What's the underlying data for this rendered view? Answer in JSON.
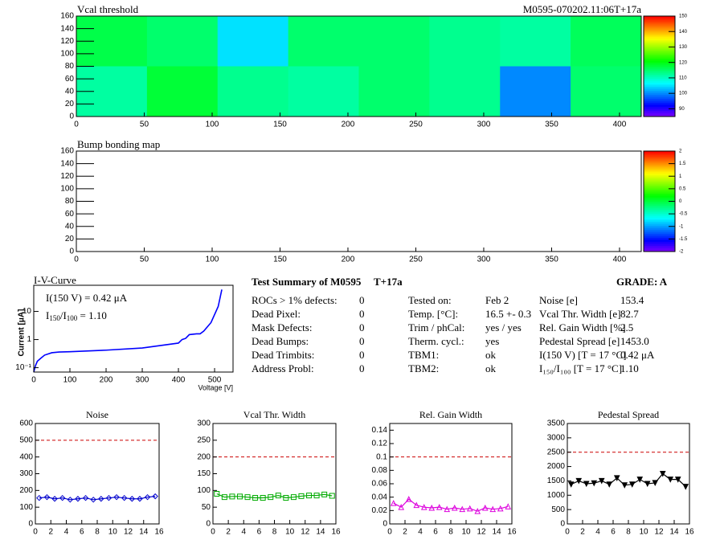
{
  "chart_data": [
    {
      "type": "heatmap",
      "title": "Vcal threshold",
      "subtitle": "M0595-070202.11:06T+17a",
      "values": [
        [
          117,
          115,
          105,
          115,
          115,
          113,
          112,
          116
        ],
        [
          112,
          118,
          113,
          112,
          115,
          113,
          100,
          115
        ]
      ],
      "xlim": [
        0,
        416
      ],
      "xticks": [
        0,
        50,
        100,
        150,
        200,
        250,
        300,
        350,
        400
      ],
      "ylim": [
        0,
        160
      ],
      "yticks": [
        0,
        20,
        40,
        60,
        80,
        100,
        120,
        140,
        160
      ],
      "zlim": [
        85,
        150
      ],
      "zticks": [
        90,
        100,
        110,
        120,
        130,
        140,
        150
      ]
    },
    {
      "type": "heatmap",
      "title": "Bump bonding map",
      "values": [],
      "xlim": [
        0,
        416
      ],
      "xticks": [
        0,
        50,
        100,
        150,
        200,
        250,
        300,
        350,
        400
      ],
      "ylim": [
        0,
        160
      ],
      "yticks": [
        0,
        20,
        40,
        60,
        80,
        100,
        120,
        140,
        160
      ],
      "zlim": [
        -2,
        2
      ],
      "zticks": [
        -2,
        -1.5,
        -1,
        -0.5,
        0,
        0.5,
        1,
        1.5,
        2
      ]
    },
    {
      "type": "line",
      "title": "I-V-Curve",
      "x_label": "Voltage [V]",
      "y_label": "Current [μA]",
      "annotation": "I(150 V) = 0.42 μA",
      "ratio_parts": [
        "I",
        "150",
        "/I",
        "100",
        " =  1.10"
      ],
      "x": [
        0,
        5,
        10,
        20,
        30,
        50,
        70,
        100,
        200,
        300,
        400,
        410,
        420,
        430,
        450,
        460,
        470,
        490,
        510,
        520
      ],
      "values": [
        0.07,
        0.12,
        0.17,
        0.22,
        0.28,
        0.34,
        0.36,
        0.37,
        0.42,
        0.5,
        0.75,
        1.0,
        1.1,
        1.5,
        1.6,
        1.6,
        2.0,
        4,
        15,
        60
      ],
      "color": "#0000ff",
      "log_y": true,
      "xlim": [
        0,
        551
      ],
      "xticks": [
        0,
        100,
        200,
        300,
        400,
        500
      ],
      "ylim": [
        0.07,
        85
      ],
      "yticks": [
        {
          "value": 0.1,
          "label": "10⁻¹"
        },
        1,
        10
      ]
    },
    {
      "type": "line",
      "title": "Noise",
      "color": "#0000cc",
      "marker": "diamond",
      "threshold": 500,
      "x": [
        0.5,
        1.5,
        2.5,
        3.5,
        4.5,
        5.5,
        6.5,
        7.5,
        8.5,
        9.5,
        10.5,
        11.5,
        12.5,
        13.5,
        14.5,
        15.5
      ],
      "values": [
        155,
        160,
        150,
        155,
        145,
        150,
        155,
        145,
        150,
        155,
        160,
        155,
        150,
        150,
        160,
        165
      ],
      "xlim": [
        0,
        16
      ],
      "xticks": [
        0,
        2,
        4,
        6,
        8,
        10,
        12,
        14,
        16
      ],
      "ylim": [
        0,
        600
      ],
      "yticks": [
        0,
        100,
        200,
        300,
        400,
        500,
        600
      ]
    },
    {
      "type": "line",
      "title": "Vcal Thr. Width",
      "color": "#00aa00",
      "marker": "square",
      "threshold": 200,
      "x": [
        0.5,
        1.5,
        2.5,
        3.5,
        4.5,
        5.5,
        6.5,
        7.5,
        8.5,
        9.5,
        10.5,
        11.5,
        12.5,
        13.5,
        14.5,
        15.5
      ],
      "values": [
        90,
        80,
        82,
        82,
        80,
        78,
        78,
        80,
        85,
        78,
        80,
        83,
        85,
        85,
        88,
        84
      ],
      "xlim": [
        0,
        16
      ],
      "xticks": [
        0,
        2,
        4,
        6,
        8,
        10,
        12,
        14,
        16
      ],
      "ylim": [
        0,
        300
      ],
      "yticks": [
        0,
        50,
        100,
        150,
        200,
        250,
        300
      ]
    },
    {
      "type": "line",
      "title": "Rel. Gain Width",
      "color": "#dd00dd",
      "marker": "triangle",
      "threshold": 0.1,
      "x": [
        0.5,
        1.5,
        2.5,
        3.5,
        4.5,
        5.5,
        6.5,
        7.5,
        8.5,
        9.5,
        10.5,
        11.5,
        12.5,
        13.5,
        14.5,
        15.5
      ],
      "values": [
        0.031,
        0.025,
        0.037,
        0.028,
        0.025,
        0.024,
        0.025,
        0.022,
        0.024,
        0.022,
        0.023,
        0.019,
        0.024,
        0.022,
        0.023,
        0.026
      ],
      "xlim": [
        0,
        16
      ],
      "xticks": [
        0,
        2,
        4,
        6,
        8,
        10,
        12,
        14,
        16
      ],
      "ylim": [
        0,
        0.15
      ],
      "yticks": [
        0,
        0.02,
        0.04,
        0.06,
        0.08,
        0.1,
        0.12,
        0.14
      ]
    },
    {
      "type": "line",
      "title": "Pedestal Spread",
      "color": "#000000",
      "marker": "triangle-down",
      "threshold": 2500,
      "x": [
        0.5,
        1.5,
        2.5,
        3.5,
        4.5,
        5.5,
        6.5,
        7.5,
        8.5,
        9.5,
        10.5,
        11.5,
        12.5,
        13.5,
        14.5,
        15.5
      ],
      "values": [
        1380,
        1500,
        1400,
        1420,
        1500,
        1380,
        1600,
        1350,
        1380,
        1550,
        1400,
        1430,
        1750,
        1550,
        1550,
        1300
      ],
      "xlim": [
        0,
        16
      ],
      "xticks": [
        0,
        2,
        4,
        6,
        8,
        10,
        12,
        14,
        16
      ],
      "ylim": [
        0,
        3500
      ],
      "yticks": [
        0,
        500,
        1000,
        1500,
        2000,
        2500,
        3000,
        3500
      ]
    }
  ],
  "summary": {
    "title": "Test Summary of M0595",
    "tag": "T+17a",
    "grade": "GRADE:  A",
    "columns": [
      [
        [
          "ROCs > 1% defects:",
          "0"
        ],
        [
          "Dead Pixel:",
          "0"
        ],
        [
          "Mask Defects:",
          "0"
        ],
        [
          "Dead Bumps:",
          "0"
        ],
        [
          "Dead Trimbits:",
          "0"
        ],
        [
          "Address Probl:",
          "0"
        ]
      ],
      [
        [
          "Tested on:",
          "Feb 2"
        ],
        [
          "Temp. [°C]:",
          "16.5 +- 0.3"
        ],
        [
          "Trim / phCal:",
          "yes / yes"
        ],
        [
          "Therm. cycl.:",
          "yes"
        ],
        [
          "TBM1:",
          "ok"
        ],
        [
          "TBM2:",
          "ok"
        ]
      ],
      [
        [
          "Noise [e]",
          "153.4"
        ],
        [
          "Vcal Thr. Width [e]",
          "82.7"
        ],
        [
          "Rel. Gain Width [%]",
          "2.5"
        ],
        [
          "Pedestal Spread [e]",
          "1453.0"
        ],
        [
          "I(150 V) [T = 17 °C]",
          "0.42 μA"
        ],
        [
          "I₁₅₀/I₁₀₀  [T = 17 °C]",
          "1.10"
        ]
      ]
    ]
  }
}
